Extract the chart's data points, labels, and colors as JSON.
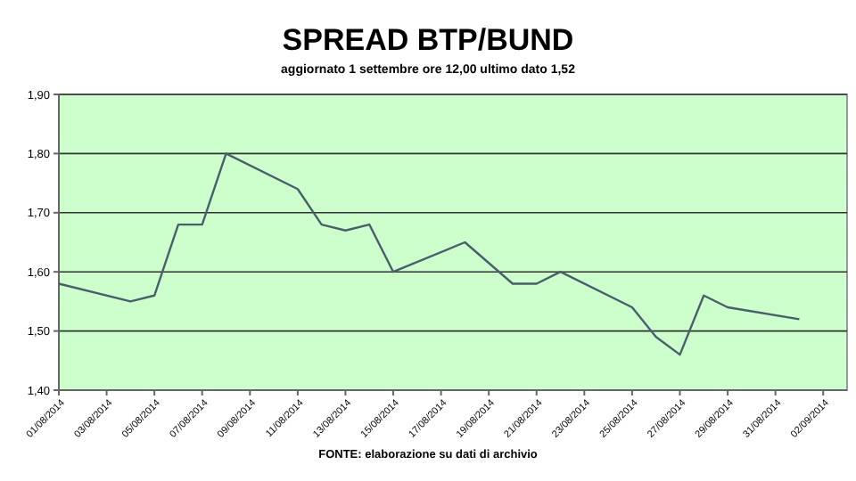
{
  "chart_data": {
    "type": "line",
    "title": "SPREAD BTP/BUND",
    "subtitle": "aggiornato 1 settembre ore 12,00 ultimo dato 1,52",
    "annotations": [
      "FONTE: elaborazione su dati di archivio"
    ],
    "x": [
      "2014-08-01",
      "2014-08-04",
      "2014-08-05",
      "2014-08-06",
      "2014-08-07",
      "2014-08-08",
      "2014-08-11",
      "2014-08-12",
      "2014-08-13",
      "2014-08-14",
      "2014-08-15",
      "2014-08-18",
      "2014-08-20",
      "2014-08-21",
      "2014-08-22",
      "2014-08-25",
      "2014-08-26",
      "2014-08-27",
      "2014-08-28",
      "2014-08-29",
      "2014-09-01"
    ],
    "series": [
      {
        "color": "#4a5f6e",
        "values": [
          1.58,
          1.55,
          1.56,
          1.68,
          1.68,
          1.8,
          1.74,
          1.68,
          1.67,
          1.68,
          1.6,
          1.65,
          1.58,
          1.58,
          1.6,
          1.54,
          1.49,
          1.46,
          1.56,
          1.54,
          1.52
        ]
      }
    ],
    "xlim": [
      "2014-08-01",
      "2014-09-03"
    ],
    "xticks": [
      {
        "value": "2014-08-01",
        "label": "01/08/2014"
      },
      {
        "value": "2014-08-03",
        "label": "03/08/2014"
      },
      {
        "value": "2014-08-05",
        "label": "05/08/2014"
      },
      {
        "value": "2014-08-07",
        "label": "07/08/2014"
      },
      {
        "value": "2014-08-09",
        "label": "09/08/2014"
      },
      {
        "value": "2014-08-11",
        "label": "11/08/2014"
      },
      {
        "value": "2014-08-13",
        "label": "13/08/2014"
      },
      {
        "value": "2014-08-15",
        "label": "15/08/2014"
      },
      {
        "value": "2014-08-17",
        "label": "17/08/2014"
      },
      {
        "value": "2014-08-19",
        "label": "19/08/2014"
      },
      {
        "value": "2014-08-21",
        "label": "21/08/2014"
      },
      {
        "value": "2014-08-23",
        "label": "23/08/2014"
      },
      {
        "value": "2014-08-25",
        "label": "25/08/2014"
      },
      {
        "value": "2014-08-27",
        "label": "27/08/2014"
      },
      {
        "value": "2014-08-29",
        "label": "29/08/2014"
      },
      {
        "value": "2014-08-31",
        "label": "31/08/2014"
      },
      {
        "value": "2014-09-02",
        "label": "02/09/2014"
      }
    ],
    "ylim": [
      1.4,
      1.9
    ],
    "yticks": [
      {
        "value": 1.4,
        "label": "1,40"
      },
      {
        "value": 1.5,
        "label": "1,50"
      },
      {
        "value": 1.6,
        "label": "1,60"
      },
      {
        "value": 1.7,
        "label": "1,70"
      },
      {
        "value": 1.8,
        "label": "1,80"
      },
      {
        "value": 1.9,
        "label": "1,90"
      }
    ],
    "grid": "y",
    "marker": "none",
    "line_style": "solid"
  }
}
